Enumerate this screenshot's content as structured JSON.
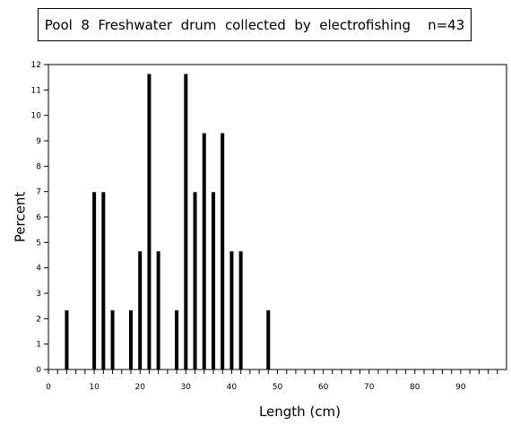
{
  "chart_data": {
    "type": "bar",
    "title": "Pool  8  Freshwater  drum  collected  by  electrofishing    n=43",
    "xlabel": "Length  (cm)",
    "ylabel": "Percent",
    "xlim": [
      0,
      100
    ],
    "ylim": [
      0,
      12
    ],
    "x_major_ticks": [
      0,
      10,
      20,
      30,
      40,
      50,
      60,
      70,
      80,
      90
    ],
    "x_minor_step": 2,
    "y_ticks": [
      0,
      1,
      2,
      3,
      4,
      5,
      6,
      7,
      8,
      9,
      10,
      11,
      12
    ],
    "grid": false,
    "bar_color": "#000000",
    "bars": [
      {
        "x": 4,
        "value": 2.33
      },
      {
        "x": 10,
        "value": 6.98
      },
      {
        "x": 12,
        "value": 6.98
      },
      {
        "x": 14,
        "value": 2.33
      },
      {
        "x": 18,
        "value": 2.33
      },
      {
        "x": 20,
        "value": 4.65
      },
      {
        "x": 22,
        "value": 11.63
      },
      {
        "x": 24,
        "value": 4.65
      },
      {
        "x": 28,
        "value": 2.33
      },
      {
        "x": 30,
        "value": 11.63
      },
      {
        "x": 32,
        "value": 6.98
      },
      {
        "x": 34,
        "value": 9.3
      },
      {
        "x": 36,
        "value": 6.98
      },
      {
        "x": 38,
        "value": 9.3
      },
      {
        "x": 40,
        "value": 4.65
      },
      {
        "x": 42,
        "value": 4.65
      },
      {
        "x": 48,
        "value": 2.33
      }
    ]
  }
}
